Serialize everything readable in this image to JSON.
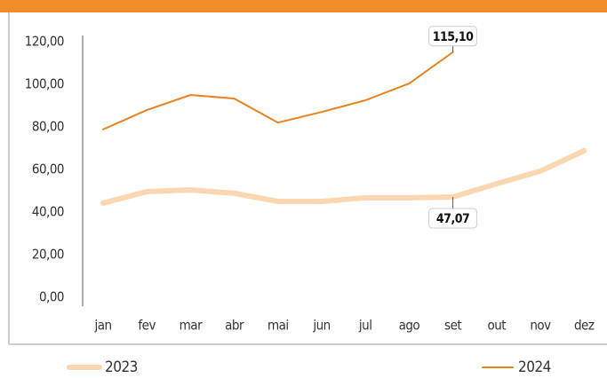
{
  "chart_data": {
    "type": "line",
    "categories": [
      "jan",
      "fev",
      "mar",
      "abr",
      "mai",
      "jun",
      "jul",
      "ago",
      "set",
      "out",
      "nov",
      "dez"
    ],
    "series": [
      {
        "name": "2023",
        "color": "#fad7b0",
        "width": 6,
        "values": [
          44.2,
          49.6,
          50.4,
          48.8,
          45.0,
          45.0,
          46.7,
          46.7,
          47.07,
          53.3,
          59.2,
          68.8
        ],
        "value_labels": [
          null,
          null,
          null,
          null,
          null,
          null,
          null,
          null,
          "47,07",
          null,
          null,
          null
        ]
      },
      {
        "name": "2024",
        "color": "#e8821e",
        "width": 2,
        "values": [
          78.8,
          87.9,
          95.0,
          93.3,
          82.0,
          87.0,
          92.5,
          100.4,
          115.1,
          null,
          null,
          null
        ],
        "value_labels": [
          null,
          null,
          null,
          null,
          null,
          null,
          null,
          null,
          "115,10",
          null,
          null,
          null
        ]
      }
    ],
    "ylim": [
      0,
      120
    ],
    "yticks": [
      {
        "value": 0,
        "label": "0,00"
      },
      {
        "value": 20,
        "label": "20,00"
      },
      {
        "value": 40,
        "label": "40,00"
      },
      {
        "value": 60,
        "label": "60,00"
      },
      {
        "value": 80,
        "label": "80,00"
      },
      {
        "value": 100,
        "label": "100,00"
      },
      {
        "value": 120,
        "label": "120,00"
      }
    ],
    "grid": false,
    "legend": "bottom"
  }
}
